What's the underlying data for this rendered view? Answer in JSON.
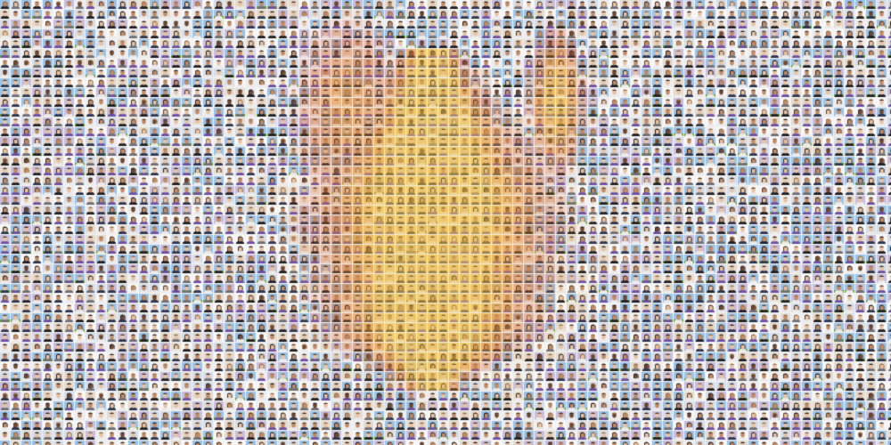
{
  "image": {
    "subject": "photo-mosaic-of-portrait-thumbnails",
    "motif": "flame",
    "palette": {
      "background": "#f4f2f0",
      "flame_outer": "#c9472b",
      "flame_mid": "#e98a2e",
      "flame_inner": "#f2c24a",
      "clothing_purple": "#6b4fa3",
      "clothing_navy": "#2b3550",
      "sky_blue": "#9cc3e6",
      "grass_green": "#6f9a4c",
      "skin_light": "#e7c3a6",
      "skin_mid": "#c28b66",
      "skin_dark": "#6e4631",
      "hair_dark": "#2a2220"
    }
  }
}
